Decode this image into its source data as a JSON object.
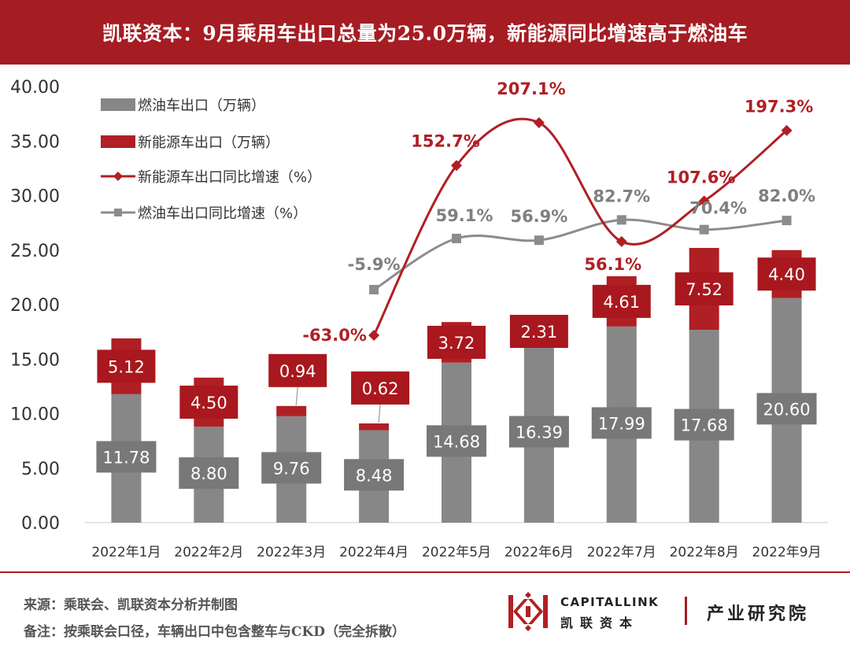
{
  "header": {
    "title": "凯联资本：9月乘用车出口总量为25.0万辆，新能源同比增速高于燃油车"
  },
  "colors": {
    "header_bg": "#a61c23",
    "fuel": "#878787",
    "ev": "#b01f24",
    "fuel_label_box": "#787878",
    "ev_label_box": "#a8181e",
    "fuel_growth_line": "#8c8c8c",
    "ev_growth_line": "#b01f24",
    "fuel_growth_text": "#7f7f7f",
    "ev_growth_text": "#b01f24",
    "axis_text": "#333333"
  },
  "chart_data": {
    "type": "bar",
    "stacked": true,
    "categories": [
      "2022年1月",
      "2022年2月",
      "2022年3月",
      "2022年4月",
      "2022年5月",
      "2022年6月",
      "2022年7月",
      "2022年8月",
      "2022年9月"
    ],
    "ylim": [
      0,
      40
    ],
    "y_ticks": [
      "0.00",
      "5.00",
      "10.00",
      "15.00",
      "20.00",
      "25.00",
      "30.00",
      "35.00",
      "40.00"
    ],
    "legend_position": "top-left",
    "series": [
      {
        "name": "燃油车出口（万辆）",
        "kind": "bar",
        "values": [
          11.78,
          8.8,
          9.76,
          8.48,
          14.68,
          16.39,
          17.99,
          17.68,
          20.6
        ],
        "labels": [
          "11.78",
          "8.80",
          "9.76",
          "8.48",
          "14.68",
          "16.39",
          "17.99",
          "17.68",
          "20.60"
        ]
      },
      {
        "name": "新能源车出口（万辆）",
        "kind": "bar",
        "values": [
          5.12,
          4.5,
          0.94,
          0.62,
          3.72,
          2.31,
          4.61,
          7.52,
          4.4
        ],
        "labels": [
          "5.12",
          "4.50",
          "0.94",
          "0.62",
          "3.72",
          "2.31",
          "4.61",
          "7.52",
          "4.40"
        ]
      },
      {
        "name": "新能源车出口同比增速（%）",
        "kind": "line",
        "values": [
          null,
          null,
          null,
          -63.0,
          152.7,
          207.1,
          56.1,
          107.6,
          197.3
        ],
        "labels": [
          "",
          "",
          "",
          "-63.0%",
          "152.7%",
          "207.1%",
          "56.1%",
          "107.6%",
          "197.3%"
        ]
      },
      {
        "name": "燃油车出口同比增速（%）",
        "kind": "line",
        "values": [
          null,
          null,
          null,
          -5.9,
          59.1,
          56.9,
          82.7,
          70.4,
          82.0
        ],
        "labels": [
          "",
          "",
          "",
          "-5.9%",
          "59.1%",
          "56.9%",
          "82.7%",
          "70.4%",
          "82.0%"
        ]
      }
    ]
  },
  "footer": {
    "source": "来源：乘联会、凯联资本分析并制图",
    "note": "备注：按乘联会口径，车辆出口中包含整车与CKD（完全拆散）",
    "logo_en": "CAPITALLINK",
    "logo_cn": "凯联资本",
    "logo_dept": "产业研究院"
  }
}
